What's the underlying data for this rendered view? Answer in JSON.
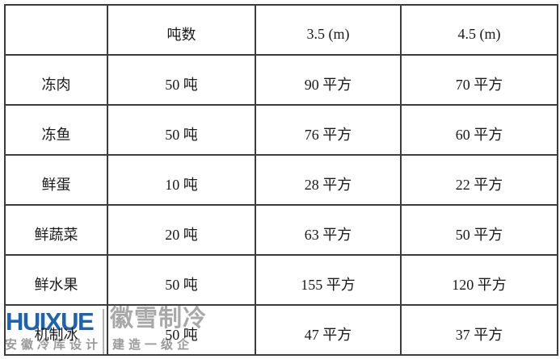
{
  "table": {
    "columns": [
      "",
      "吨数",
      "3.5 (m)",
      "4.5 (m)"
    ],
    "rows": [
      {
        "label": "冻肉",
        "tons": "50 吨",
        "area_3_5": "90 平方",
        "area_4_5": "70 平方"
      },
      {
        "label": "冻鱼",
        "tons": "50 吨",
        "area_3_5": "76 平方",
        "area_4_5": "60 平方"
      },
      {
        "label": "鲜蛋",
        "tons": "10 吨",
        "area_3_5": "28 平方",
        "area_4_5": "22 平方"
      },
      {
        "label": "鲜蔬菜",
        "tons": "20 吨",
        "area_3_5": "63 平方",
        "area_4_5": "50 平方"
      },
      {
        "label": "鲜水果",
        "tons": "50 吨",
        "area_3_5": "155 平方",
        "area_4_5": "120 平方"
      },
      {
        "label": "机制冰",
        "tons": "50 吨",
        "area_3_5": "47 平方",
        "area_4_5": "37 平方"
      }
    ]
  },
  "watermark": {
    "logo_text": "HUIXUE",
    "logo_cn": "徽雪制冷",
    "tagline_left": "安徽冷库设计",
    "tagline_right": "建造一级企"
  },
  "colors": {
    "logo_blue": "#1e63b0",
    "watermark_gray": "#a8a8a8",
    "border": "#3c3c3c"
  }
}
